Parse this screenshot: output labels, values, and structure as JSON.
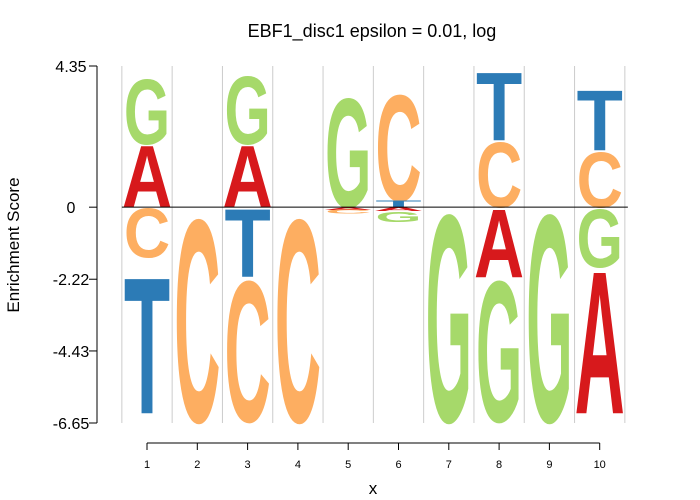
{
  "chart_data": {
    "type": "sequence-logo",
    "title": "EBF1_disc1 epsilon = 0.01, log",
    "xlabel": "x",
    "ylabel": "Enrichment Score",
    "ylim": [
      -6.65,
      4.35
    ],
    "yticks": [
      "4.35",
      "0",
      "-2.22",
      "-4.43",
      "-6.65"
    ],
    "yticks_values": [
      4.35,
      0,
      -2.22,
      -4.43,
      -6.65
    ],
    "positions": [
      1,
      2,
      3,
      4,
      5,
      6,
      7,
      8,
      9,
      10
    ],
    "xtick_labels": [
      "1",
      "2",
      "3",
      "4",
      "5",
      "6",
      "7",
      "8",
      "9",
      "10"
    ],
    "grid": "vertical separators between positions",
    "colors": {
      "A": "#d7191c",
      "C": "#fdae61",
      "G": "#a6d96a",
      "T": "#2c7bb6"
    },
    "letters": [
      [
        {
          "base": "A",
          "y0": 0,
          "y1": 1.95
        },
        {
          "base": "G",
          "y0": 1.95,
          "y1": 4.0
        },
        {
          "base": "C",
          "y0": -1.55,
          "y1": 0
        },
        {
          "base": "T",
          "y0": -6.35,
          "y1": -2.05
        }
      ],
      [
        {
          "base": "C",
          "y0": -6.6,
          "y1": -0.2
        }
      ],
      [
        {
          "base": "A",
          "y0": 0,
          "y1": 1.95
        },
        {
          "base": "G",
          "y0": 1.95,
          "y1": 4.1
        },
        {
          "base": "T",
          "y0": -2.15,
          "y1": 0
        },
        {
          "base": "C",
          "y0": -6.6,
          "y1": -2.15
        }
      ],
      [
        {
          "base": "C",
          "y0": -6.6,
          "y1": -0.2
        }
      ],
      [
        {
          "base": "G",
          "y0": 0,
          "y1": 3.45
        },
        {
          "base": "A",
          "y0": -0.08,
          "y1": 0
        },
        {
          "base": "C",
          "y0": -0.2,
          "y1": -0.08
        }
      ],
      [
        {
          "base": "C",
          "y0": 0.2,
          "y1": 3.55
        },
        {
          "base": "T",
          "y0": 0,
          "y1": 0.2
        },
        {
          "base": "A",
          "y0": -0.12,
          "y1": 0
        },
        {
          "base": "G",
          "y0": -0.45,
          "y1": -0.12
        }
      ],
      [
        {
          "base": "G",
          "y0": -6.6,
          "y1": -0.05
        }
      ],
      [
        {
          "base": "C",
          "y0": 0,
          "y1": 2.05
        },
        {
          "base": "T",
          "y0": 2.05,
          "y1": 4.2
        },
        {
          "base": "A",
          "y0": -2.15,
          "y1": 0
        },
        {
          "base": "G",
          "y0": -6.6,
          "y1": -2.15
        }
      ],
      [
        {
          "base": "G",
          "y0": -6.6,
          "y1": -0.05
        }
      ],
      [
        {
          "base": "C",
          "y0": 0,
          "y1": 1.75
        },
        {
          "base": "T",
          "y0": 1.75,
          "y1": 3.65
        },
        {
          "base": "G",
          "y0": -1.85,
          "y1": 0
        },
        {
          "base": "A",
          "y0": -6.35,
          "y1": -1.85
        }
      ]
    ]
  }
}
